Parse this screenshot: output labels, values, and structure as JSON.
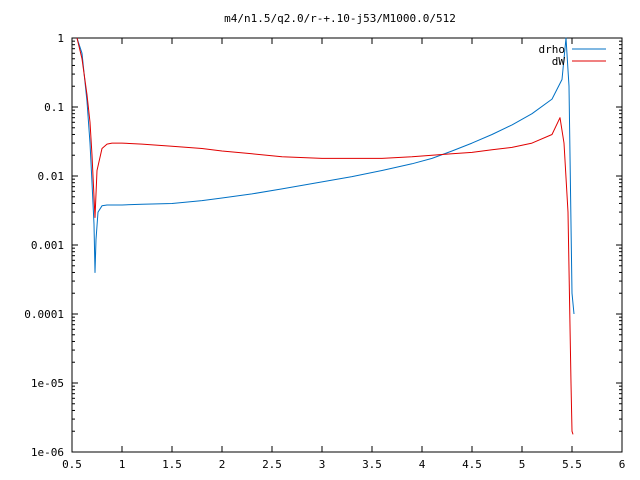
{
  "chart_data": {
    "type": "line",
    "title": "m4/n1.5/q2.0/r-+.10-j53/M1000.0/512",
    "xlabel": "",
    "ylabel": "",
    "xlim": [
      0.5,
      6
    ],
    "ylim": [
      1e-06,
      1
    ],
    "ylog": true,
    "grid": false,
    "legend_position": "top-right",
    "x_ticks": [
      "0.5",
      "1",
      "1.5",
      "2",
      "2.5",
      "3",
      "3.5",
      "4",
      "4.5",
      "5",
      "5.5",
      "6"
    ],
    "x_tick_values": [
      0.5,
      1,
      1.5,
      2,
      2.5,
      3,
      3.5,
      4,
      4.5,
      5,
      5.5,
      6
    ],
    "y_ticks": [
      "1e-06",
      "1e-05",
      "0.0001",
      "0.001",
      "0.01",
      "0.1",
      "1"
    ],
    "y_tick_values": [
      1e-06,
      1e-05,
      0.0001,
      0.001,
      0.01,
      0.1,
      1
    ],
    "series": [
      {
        "name": "drho",
        "color": "#0071c5",
        "x": [
          0.55,
          0.6,
          0.65,
          0.68,
          0.7,
          0.72,
          0.73,
          0.74,
          0.76,
          0.8,
          0.85,
          0.9,
          1.0,
          1.2,
          1.5,
          1.8,
          2.0,
          2.3,
          2.6,
          3.0,
          3.3,
          3.6,
          3.9,
          4.1,
          4.3,
          4.5,
          4.7,
          4.9,
          5.1,
          5.3,
          5.4,
          5.44,
          5.47,
          5.5,
          5.52
        ],
        "y": [
          1.0,
          0.6,
          0.12,
          0.03,
          0.008,
          0.002,
          0.0004,
          0.0012,
          0.003,
          0.0037,
          0.0038,
          0.0038,
          0.0038,
          0.0039,
          0.004,
          0.0044,
          0.0048,
          0.0055,
          0.0065,
          0.0082,
          0.0098,
          0.012,
          0.015,
          0.018,
          0.023,
          0.03,
          0.04,
          0.055,
          0.08,
          0.13,
          0.25,
          1.0,
          0.2,
          0.0002,
          0.0001
        ]
      },
      {
        "name": "dW",
        "color": "#e00000",
        "x": [
          0.55,
          0.6,
          0.65,
          0.68,
          0.7,
          0.72,
          0.73,
          0.75,
          0.8,
          0.85,
          0.9,
          1.0,
          1.2,
          1.5,
          1.8,
          2.0,
          2.3,
          2.6,
          3.0,
          3.3,
          3.6,
          3.9,
          4.1,
          4.3,
          4.5,
          4.7,
          4.9,
          5.1,
          5.3,
          5.38,
          5.42,
          5.46,
          5.49,
          5.5,
          5.51
        ],
        "y": [
          1.0,
          0.5,
          0.15,
          0.06,
          0.02,
          0.005,
          0.0025,
          0.012,
          0.025,
          0.029,
          0.03,
          0.03,
          0.029,
          0.027,
          0.025,
          0.023,
          0.021,
          0.019,
          0.018,
          0.018,
          0.018,
          0.019,
          0.02,
          0.021,
          0.022,
          0.024,
          0.026,
          0.03,
          0.04,
          0.07,
          0.03,
          0.003,
          1e-05,
          2e-06,
          1.8e-06
        ]
      }
    ]
  }
}
